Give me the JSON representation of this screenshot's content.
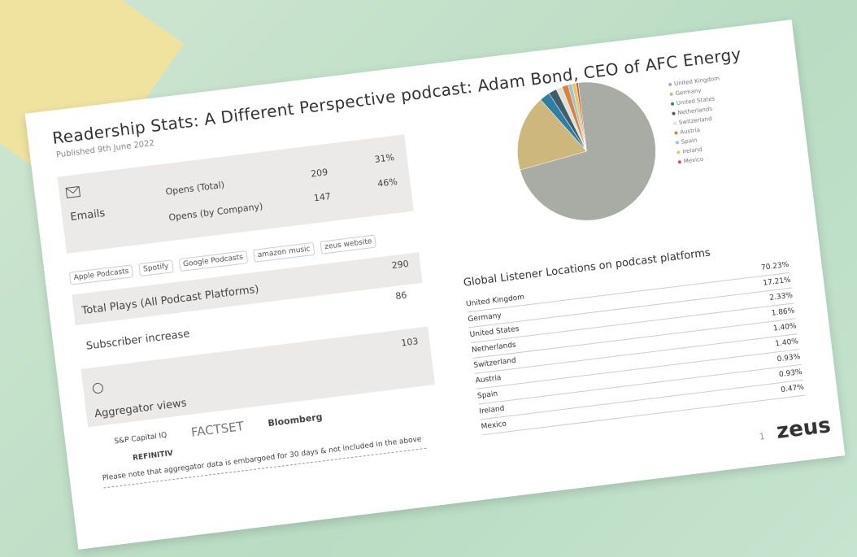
{
  "header": {
    "title": "Readership Stats: A Different Perspective podcast: Adam Bond, CEO of AFC Energy",
    "published": "Published 9th June 2022"
  },
  "emails": {
    "label": "Emails",
    "rows": [
      {
        "label": "Opens (Total)",
        "count": "209",
        "percent": "31%"
      },
      {
        "label": "Opens (by Company)",
        "count": "147",
        "percent": "46%"
      }
    ]
  },
  "platforms": {
    "logos": [
      "Apple Podcasts",
      "Spotify",
      "Google Podcasts",
      "amazon music",
      "zeus website"
    ],
    "rows": [
      {
        "label": "Total Plays (All Podcast Platforms)",
        "value": "290"
      },
      {
        "label": "Subscriber increase",
        "value": "86"
      }
    ]
  },
  "aggregators": {
    "label": "Aggregator views",
    "value": "103",
    "logos": [
      "S&P Capital IQ",
      "FACTSET",
      "Bloomberg",
      "REFINITIV"
    ],
    "note": "Please note that aggregator data is embargoed for 30 days & not included in the above"
  },
  "chart_data": {
    "type": "pie",
    "title": "Global Listener Locations on podcast platforms",
    "categories": [
      "United Kingdom",
      "Germany",
      "United States",
      "Netherlands",
      "Switzerland",
      "Austria",
      "Spain",
      "Ireland",
      "Mexico"
    ],
    "values": [
      70.23,
      17.21,
      2.33,
      1.86,
      1.4,
      1.4,
      0.93,
      0.93,
      0.47
    ],
    "value_labels": [
      "70.23%",
      "17.21%",
      "2.33%",
      "1.86%",
      "1.40%",
      "1.40%",
      "0.93%",
      "0.93%",
      "0.47%"
    ],
    "colors": [
      "#a9aba5",
      "#cdb77c",
      "#2f7fa0",
      "#3f5d6c",
      "#e0e0d6",
      "#d9833f",
      "#9cc4d8",
      "#e9c75d",
      "#c85a4a"
    ]
  },
  "footer": {
    "page": "1",
    "brand": "zeus"
  }
}
